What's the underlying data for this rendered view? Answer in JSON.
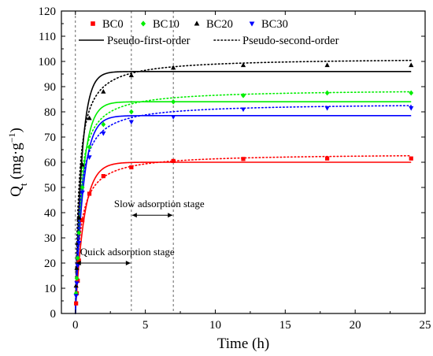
{
  "chart_data": {
    "type": "scatter",
    "title": "",
    "xlabel": "Time (h)",
    "ylabel": {
      "main": "Q",
      "sub": "t",
      "unit_prefix": " (mg·g",
      "unit_sup": "−1",
      "unit_suffix": ")"
    },
    "xlim": [
      -1,
      25
    ],
    "ylim": [
      0,
      120
    ],
    "xticks": [
      0,
      5,
      10,
      15,
      20,
      25
    ],
    "yticks": [
      0,
      10,
      20,
      30,
      40,
      50,
      60,
      70,
      80,
      90,
      100,
      110,
      120
    ],
    "grid": false,
    "legend_position": "top-left",
    "time_points": [
      0.05,
      0.1,
      0.167,
      0.25,
      0.5,
      1,
      2,
      4,
      7,
      12,
      18,
      24
    ],
    "series": [
      {
        "name": "BC0",
        "marker": "square",
        "color": "#ff0000",
        "values": [
          4,
          8,
          13,
          21,
          37,
          47.5,
          54.5,
          58,
          60.5,
          61.3,
          61.5,
          61.5
        ],
        "pfo": {
          "qe": 60,
          "k1": 1.6
        },
        "pso": {
          "qe": 63.5,
          "k2": 0.045
        }
      },
      {
        "name": "BC10",
        "marker": "diamond",
        "color": "#00ee00",
        "values": [
          8,
          14,
          22,
          32,
          50,
          66,
          75,
          80,
          84,
          86.5,
          87.5,
          87.5
        ],
        "pfo": {
          "qe": 84,
          "k1": 1.9
        },
        "pso": {
          "qe": 89,
          "k2": 0.04
        }
      },
      {
        "name": "BC20",
        "marker": "triangle-up",
        "color": "#000000",
        "values": [
          11,
          18,
          28,
          38,
          59,
          77.5,
          88,
          94.5,
          97.5,
          98.5,
          98.5,
          98.5
        ],
        "pfo": {
          "qe": 96,
          "k1": 2.2
        },
        "pso": {
          "qe": 101.5,
          "k2": 0.038
        }
      },
      {
        "name": "BC30",
        "marker": "triangle-down",
        "color": "#0000ff",
        "values": [
          7,
          12,
          19,
          28,
          48,
          62,
          71.5,
          76,
          78,
          81,
          81.5,
          81.5
        ],
        "pfo": {
          "qe": 78.5,
          "k1": 1.8
        },
        "pso": {
          "qe": 83.5,
          "k2": 0.04
        }
      }
    ],
    "fit_legend": [
      {
        "name": "Pseudo-first-order",
        "style": "solid"
      },
      {
        "name": "Pseudo-second-order",
        "style": "dotted"
      }
    ],
    "stage_lines_x": [
      0,
      4,
      7
    ],
    "annotations": [
      {
        "text": "Quick adsorption stage",
        "x1": 0,
        "x2": 4,
        "y": 20
      },
      {
        "text": "Slow adsorption stage",
        "x1": 4,
        "x2": 7,
        "y": 39
      }
    ]
  }
}
